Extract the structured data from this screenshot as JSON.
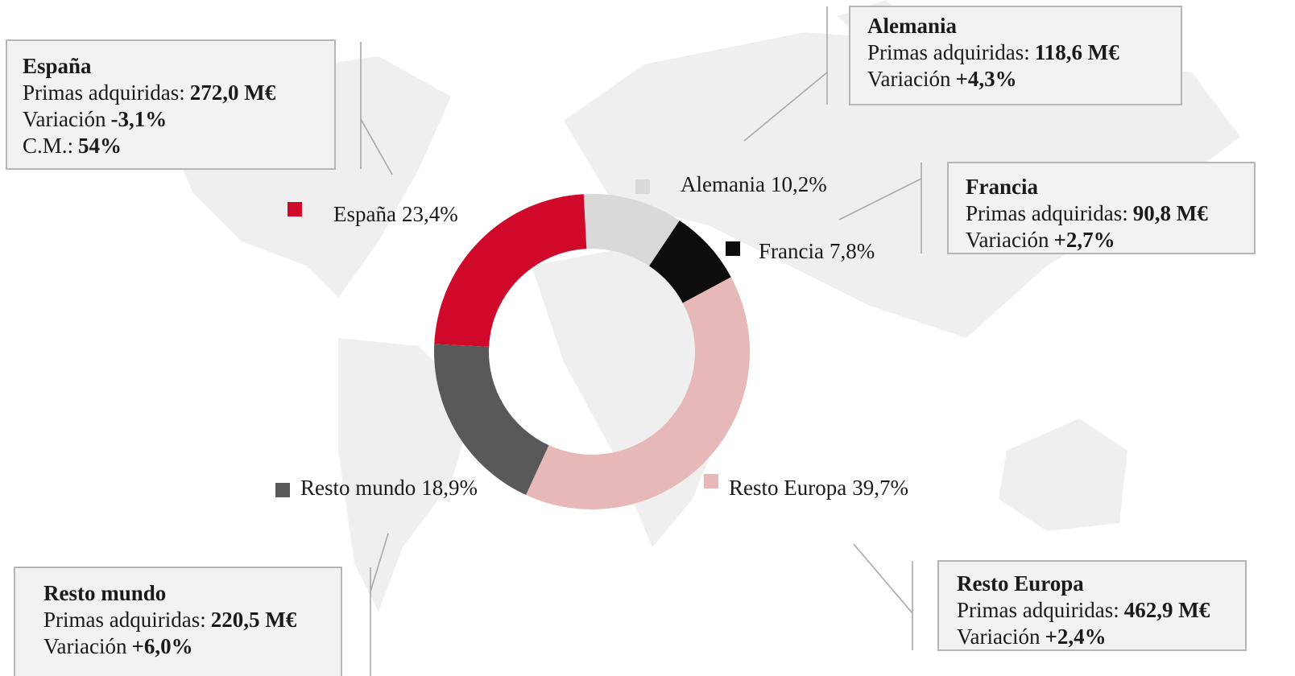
{
  "chart_data": {
    "type": "donut",
    "categories": [
      "Alemania",
      "Francia",
      "Resto Europa",
      "Resto mundo",
      "España"
    ],
    "values": [
      10.2,
      7.8,
      39.7,
      18.9,
      23.4
    ],
    "value_labels": [
      "10,2%",
      "7,8%",
      "39,7%",
      "18,9%",
      "23,4%"
    ],
    "colors": [
      "#d9d9d9",
      "#0d0d0d",
      "#e6b8b8",
      "#595959",
      "#d0082a"
    ]
  },
  "boxes": [
    {
      "title": "España",
      "lines": [
        {
          "label": "Primas adquiridas:",
          "value": "272,0 M€"
        },
        {
          "label": "Variación",
          "value": "-3,1%"
        },
        {
          "label": "C.M.:",
          "value": "54%"
        }
      ]
    },
    {
      "title": "Alemania",
      "lines": [
        {
          "label": "Primas adquiridas:",
          "value": "118,6 M€"
        },
        {
          "label": "Variación",
          "value": "+4,3%"
        }
      ]
    },
    {
      "title": "Francia",
      "lines": [
        {
          "label": "Primas adquiridas:",
          "value": "90,8 M€"
        },
        {
          "label": "Variación",
          "value": "+2,7%"
        }
      ]
    },
    {
      "title": "Resto mundo",
      "lines": [
        {
          "label": "Primas adquiridas:",
          "value": "220,5 M€"
        },
        {
          "label": "Variación",
          "value": "+6,0%"
        }
      ]
    },
    {
      "title": "Resto Europa",
      "lines": [
        {
          "label": "Primas adquiridas:",
          "value": "462,9 M€"
        },
        {
          "label": "Variación",
          "value": "+2,4%"
        }
      ]
    }
  ]
}
